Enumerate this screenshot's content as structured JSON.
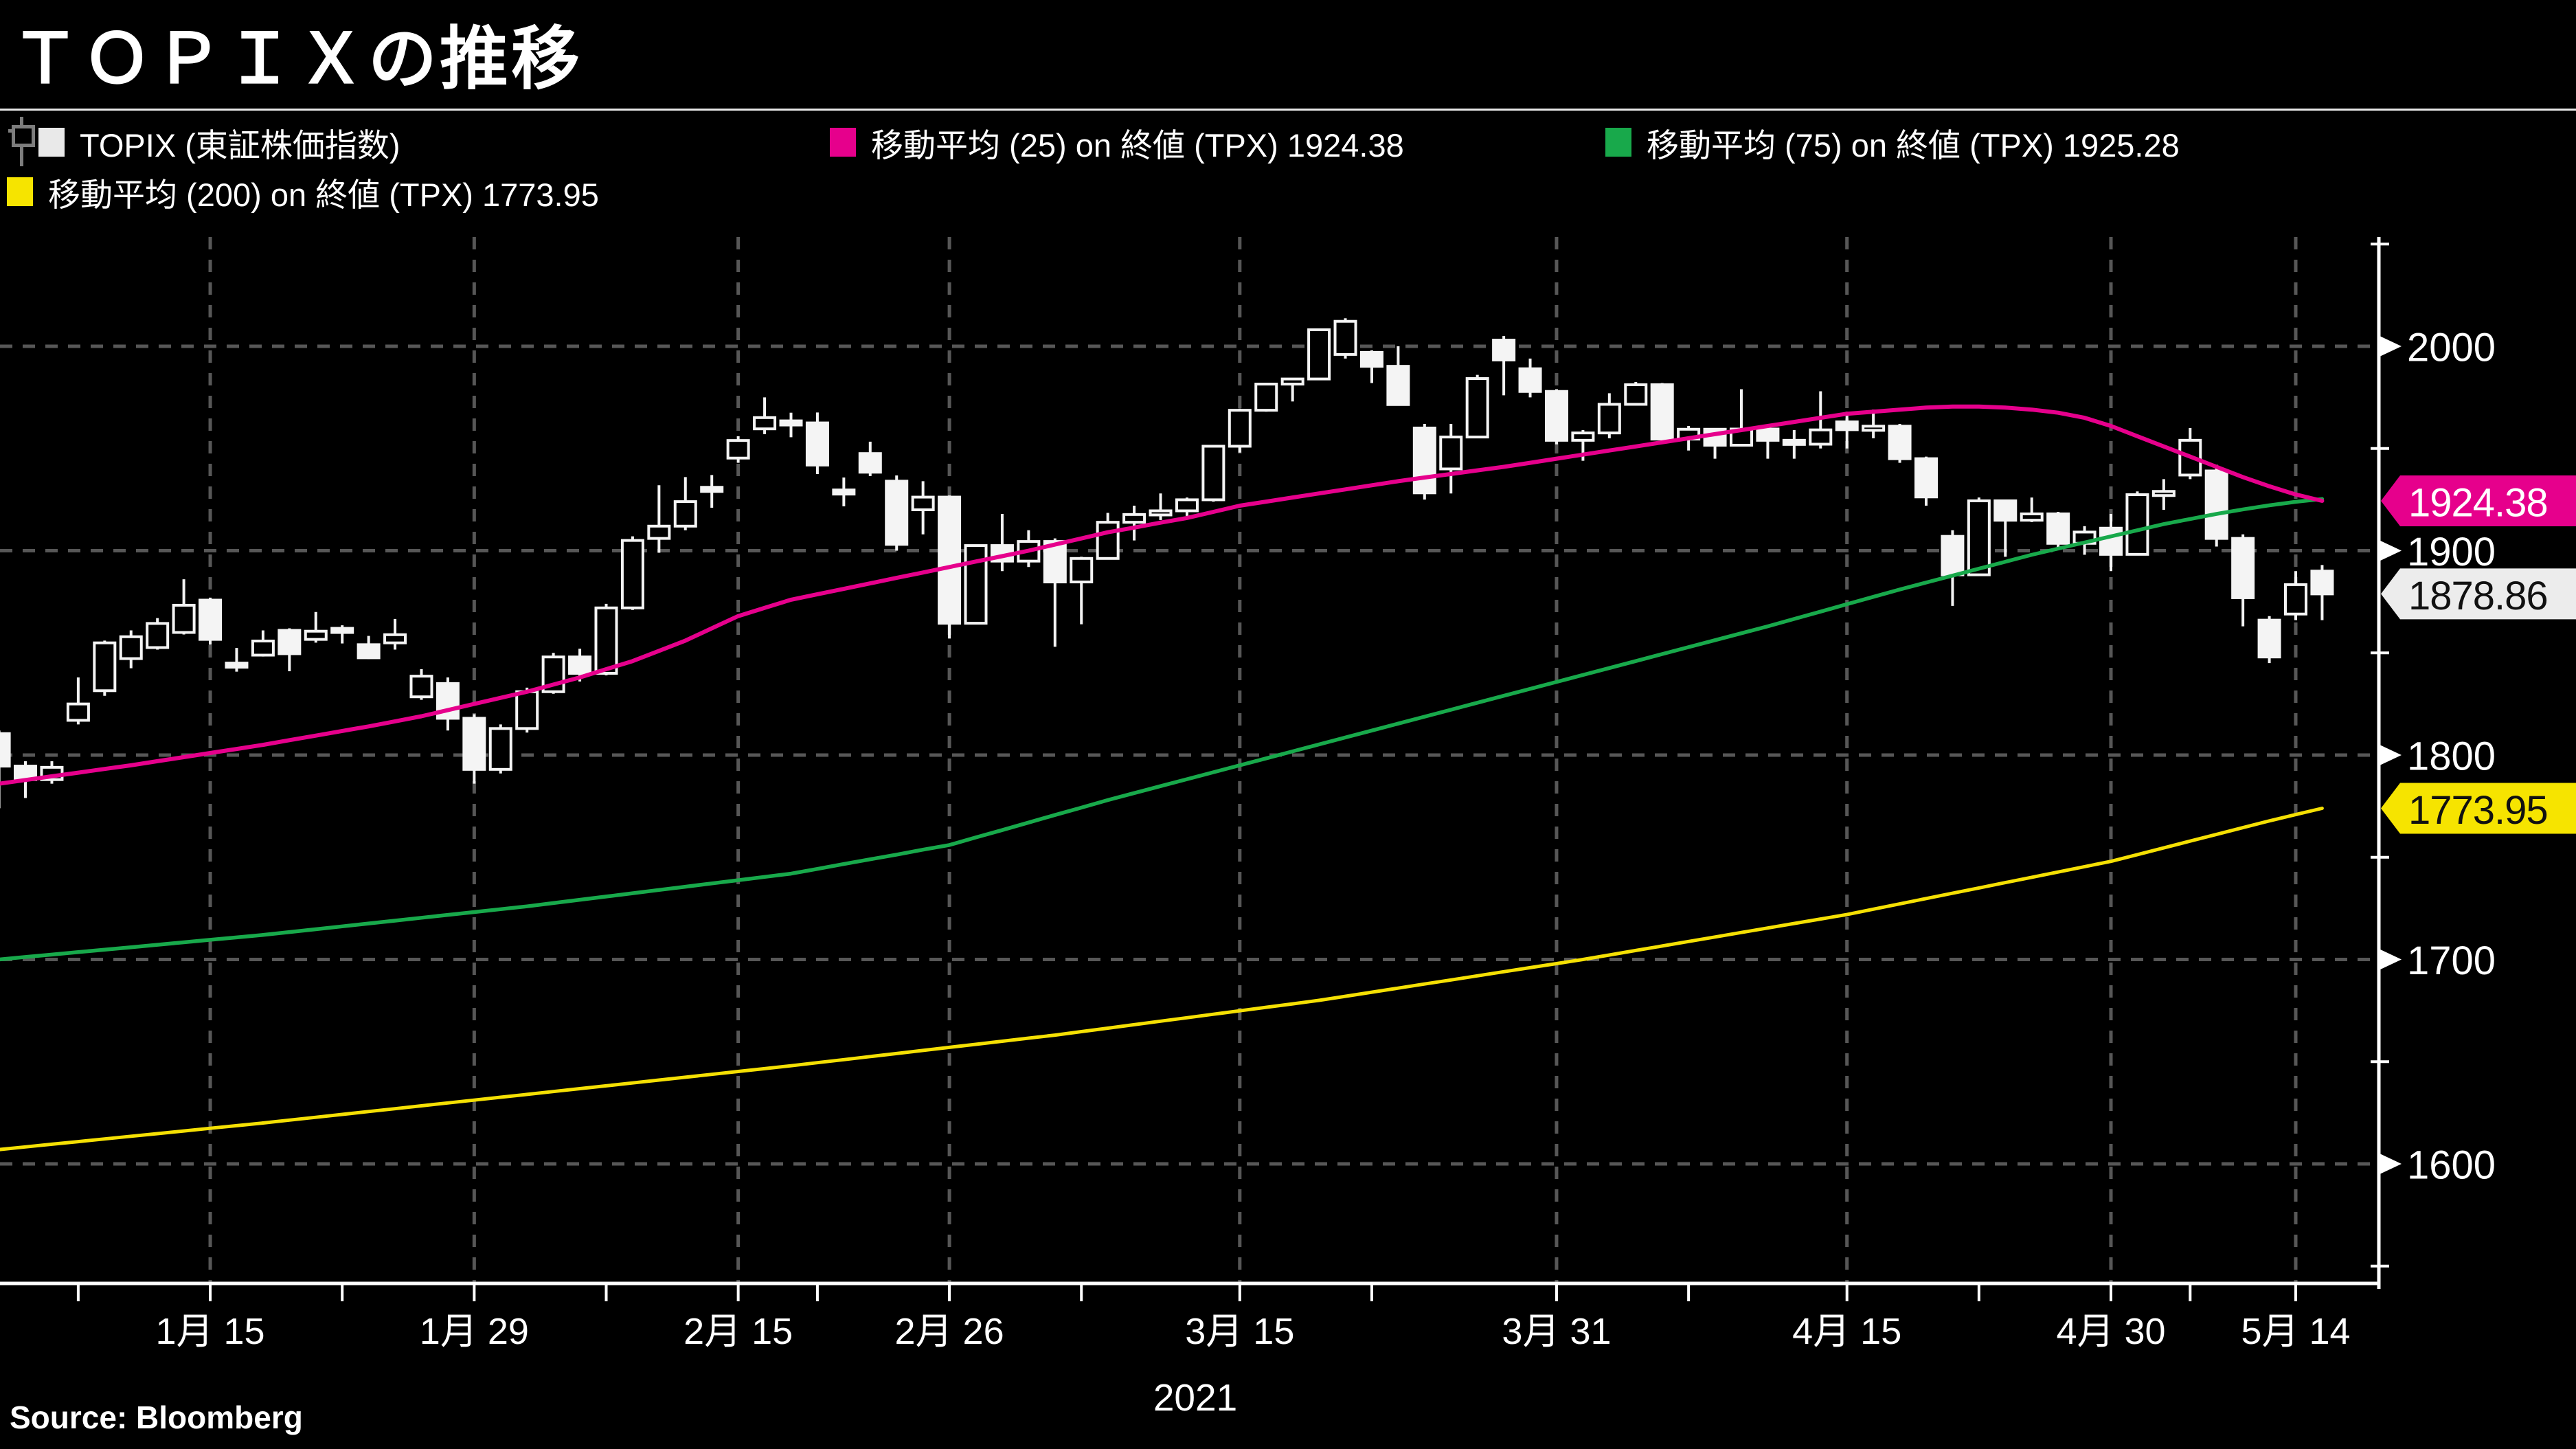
{
  "title": "ＴＯＰＩＸの推移",
  "source": "Source:  Bloomberg",
  "legend": {
    "items": [
      {
        "id": "topix",
        "label": "TOPIX (東証株価指数)",
        "swatch": "#e9e9e9"
      },
      {
        "id": "ma25",
        "label": "移動平均 (25)  on 終値 (TPX) 1924.38",
        "swatch": "#e6008c"
      },
      {
        "id": "ma75",
        "label": "移動平均 (75)  on 終値 (TPX) 1925.28",
        "swatch": "#18a94b"
      },
      {
        "id": "ma200",
        "label": "移動平均 (200)  on 終値 (TPX) 1773.95",
        "swatch": "#f6e400"
      }
    ]
  },
  "chart_data": {
    "type": "candlestick",
    "title": "ＴＯＰＩＸの推移",
    "ylim": [
      1540,
      2060
    ],
    "grid": true,
    "legend_position": "top",
    "x_axis": {
      "year": "2021",
      "labels": [
        {
          "text": "1月 15",
          "i": 8
        },
        {
          "text": "1月 29",
          "i": 18
        },
        {
          "text": "2月 15",
          "i": 28
        },
        {
          "text": "2月 26",
          "i": 36
        },
        {
          "text": "3月 15",
          "i": 47
        },
        {
          "text": "3月 31",
          "i": 59
        },
        {
          "text": "4月 15",
          "i": 70
        },
        {
          "text": "4月 30",
          "i": 80
        },
        {
          "text": "5月 14",
          "i": 87
        }
      ],
      "minor_tick_indices": [
        3,
        13,
        23,
        31,
        41,
        52,
        64,
        75,
        83
      ]
    },
    "y_axis": {
      "ticks": [
        2000,
        1900,
        1800,
        1700,
        1600
      ],
      "minor_ticks": [
        2050,
        1950,
        1850,
        1750,
        1650,
        1550
      ]
    },
    "price_flags": [
      {
        "text": "1924.38",
        "value": 1924.38,
        "bg": "#e6008c",
        "fg": "#ffffff"
      },
      {
        "text": "1878.86",
        "value": 1878.86,
        "bg": "#ececec",
        "fg": "#111111"
      },
      {
        "text": "1773.95",
        "value": 1773.95,
        "bg": "#f6e400",
        "fg": "#111111"
      }
    ],
    "colors": {
      "background": "#000000",
      "candle": "#f4f4f4",
      "ma25": "#e6008c",
      "ma75": "#18a94b",
      "ma200": "#f5e003",
      "grid": "#575757",
      "axis": "#ffffff"
    },
    "layout": {
      "y2000": 504,
      "ppp": 2.975,
      "x0": -1.4,
      "xstep": 38.43,
      "candle_w": 30,
      "axis_x": 3463,
      "axis_bottom": 1868,
      "plot_top": 345,
      "label_y": 1956,
      "tick_len": 26
    },
    "ohlc": [
      [
        "1/4",
        1810.5,
        1812,
        1774,
        1794.6
      ],
      [
        "1/5",
        1794.6,
        1797,
        1779,
        1788
      ],
      [
        "1/6",
        1788,
        1797,
        1786,
        1794
      ],
      [
        "1/7",
        1817,
        1838,
        1815,
        1825
      ],
      [
        "1/8",
        1831.5,
        1856,
        1829,
        1854.9
      ],
      [
        "1/12",
        1847.2,
        1861,
        1842.5,
        1857.9
      ],
      [
        "1/13",
        1852.6,
        1867,
        1851.6,
        1864.4
      ],
      [
        "1/14",
        1860,
        1886,
        1859,
        1873.3
      ],
      [
        "1/15",
        1875.8,
        1877,
        1854,
        1856.6
      ],
      [
        "1/18",
        1845,
        1852.4,
        1840.8,
        1843
      ],
      [
        "1/19",
        1848.9,
        1861,
        1848.2,
        1855.8
      ],
      [
        "1/20",
        1861,
        1862,
        1841,
        1849.6
      ],
      [
        "1/21",
        1856.6,
        1870,
        1855,
        1860.6
      ],
      [
        "1/22",
        1862,
        1863.5,
        1854.6,
        1861.5
      ],
      [
        "1/25",
        1854,
        1858.3,
        1847,
        1847.6
      ],
      [
        "1/26",
        1854.9,
        1866.6,
        1851.6,
        1858.9
      ],
      [
        "1/27",
        1828.5,
        1842,
        1827,
        1838.6
      ],
      [
        "1/28",
        1835,
        1838,
        1812,
        1818
      ],
      [
        "1/29",
        1818,
        1820,
        1786,
        1793
      ],
      [
        "2/1",
        1793,
        1815,
        1791,
        1813
      ],
      [
        "2/2",
        1813,
        1833,
        1811,
        1831
      ],
      [
        "2/3",
        1831,
        1850,
        1830,
        1848
      ],
      [
        "2/4",
        1848,
        1852,
        1836,
        1840
      ],
      [
        "2/5",
        1840,
        1874,
        1839,
        1872
      ],
      [
        "2/8",
        1872,
        1907,
        1871,
        1905
      ],
      [
        "2/9",
        1906,
        1932,
        1899,
        1912
      ],
      [
        "2/10",
        1912,
        1936,
        1910,
        1924
      ],
      [
        "2/12",
        1931,
        1937,
        1921,
        1929
      ],
      [
        "2/15",
        1945.3,
        1956,
        1943,
        1953.9
      ],
      [
        "2/16",
        1959.6,
        1975,
        1957,
        1965.1
      ],
      [
        "2/17",
        1963.5,
        1967.5,
        1955.5,
        1961.5
      ],
      [
        "2/18",
        1962.5,
        1967.6,
        1937.5,
        1941.9
      ],
      [
        "2/19",
        1929.7,
        1935.8,
        1921.7,
        1928.2
      ],
      [
        "2/22",
        1947.5,
        1953.3,
        1936.5,
        1938.4
      ],
      [
        "2/24",
        1934,
        1936.8,
        1900,
        1903.1
      ],
      [
        "2/25",
        1920,
        1934,
        1908,
        1926.2
      ],
      [
        "2/26",
        1926.2,
        1927,
        1857,
        1864.5
      ],
      [
        "3/1",
        1864.5,
        1903,
        1864,
        1902.5
      ],
      [
        "3/2",
        1902.5,
        1918,
        1890,
        1894.9
      ],
      [
        "3/3",
        1894.9,
        1910,
        1892,
        1904.5
      ],
      [
        "3/4",
        1904.5,
        1906,
        1853,
        1884.7
      ],
      [
        "3/5",
        1884.7,
        1897,
        1864,
        1896.2
      ],
      [
        "3/8",
        1896.2,
        1918.5,
        1896,
        1913.9
      ],
      [
        "3/9",
        1913.9,
        1922,
        1905,
        1917.7
      ],
      [
        "3/10",
        1917.7,
        1928,
        1915,
        1919.5
      ],
      [
        "3/11",
        1919.5,
        1926,
        1917,
        1924.9
      ],
      [
        "3/12",
        1924.9,
        1951.5,
        1924,
        1951.1
      ],
      [
        "3/15",
        1951.1,
        1969.5,
        1948,
        1968.7
      ],
      [
        "3/16",
        1968.7,
        1982,
        1968,
        1981.5
      ],
      [
        "3/17",
        1981.5,
        1984.5,
        1973,
        1984
      ],
      [
        "3/18",
        1984,
        2008.5,
        1984,
        2008.1
      ],
      [
        "3/19",
        1996,
        2013.7,
        1994,
        2012.2
      ],
      [
        "3/22",
        1997,
        1998,
        1982,
        1990.2
      ],
      [
        "3/23",
        1990.2,
        2000,
        1971,
        1971.5
      ],
      [
        "3/24",
        1960,
        1962,
        1925,
        1928.3
      ],
      [
        "3/25",
        1940,
        1962,
        1928,
        1955.6
      ],
      [
        "3/26",
        1955.6,
        1986,
        1955,
        1984.2
      ],
      [
        "3/29",
        2003,
        2005,
        1976,
        1993.3
      ],
      [
        "3/30",
        1989,
        1994,
        1975,
        1977.9
      ],
      [
        "3/31",
        1977.9,
        1979,
        1952,
        1954
      ],
      [
        "4/1",
        1954,
        1959,
        1944,
        1957.6
      ],
      [
        "4/2",
        1957.6,
        1977,
        1955,
        1971.6
      ],
      [
        "4/5",
        1971.6,
        1982.5,
        1971,
        1981.2
      ],
      [
        "4/6",
        1981.2,
        1982,
        1953,
        1954.6
      ],
      [
        "4/7",
        1954.6,
        1961,
        1949,
        1959.4
      ],
      [
        "4/8",
        1959.4,
        1960,
        1945,
        1951.6
      ],
      [
        "4/9",
        1951.6,
        1979,
        1951,
        1959.5
      ],
      [
        "4/12",
        1959.5,
        1960,
        1945,
        1954
      ],
      [
        "4/13",
        1954,
        1959,
        1945,
        1952.1
      ],
      [
        "4/14",
        1952.1,
        1978,
        1950,
        1959.1
      ],
      [
        "4/15",
        1963,
        1968,
        1950,
        1959.2
      ],
      [
        "4/16",
        1959.2,
        1969,
        1955,
        1960.9
      ],
      [
        "4/19",
        1960.9,
        1962,
        1943,
        1945
      ],
      [
        "4/20",
        1945,
        1946,
        1922,
        1926.3
      ],
      [
        "4/21",
        1907,
        1910,
        1873,
        1888.2
      ],
      [
        "4/22",
        1888.2,
        1926,
        1888,
        1924.4
      ],
      [
        "4/23",
        1924.4,
        1925,
        1897,
        1914.9
      ],
      [
        "4/26",
        1914.9,
        1926,
        1914,
        1918
      ],
      [
        "4/27",
        1918,
        1919,
        1901,
        1903.6
      ],
      [
        "4/28",
        1903.6,
        1912,
        1898,
        1909.1
      ],
      [
        "4/30",
        1911,
        1918,
        1890,
        1898.2
      ],
      [
        "5/6",
        1898.2,
        1929,
        1898,
        1927.4
      ],
      [
        "5/7",
        1927.4,
        1935,
        1920,
        1929
      ],
      [
        "5/10",
        1937,
        1960,
        1935,
        1954
      ],
      [
        "5/11",
        1939,
        1942,
        1902,
        1906
      ],
      [
        "5/12",
        1906,
        1908,
        1863,
        1877
      ],
      [
        "5/13",
        1866,
        1868,
        1845,
        1848
      ],
      [
        "5/14",
        1869,
        1890,
        1866,
        1883.4
      ],
      [
        "5/17",
        1890,
        1893,
        1866,
        1878.86
      ]
    ],
    "ma25": [
      1786,
      1787.8,
      1789.6,
      1791.4,
      1793.2,
      1795,
      1797,
      1799,
      1801,
      1803,
      1805,
      1807.3,
      1809.5,
      1811.8,
      1814,
      1816.5,
      1819,
      1822,
      1825,
      1828,
      1831,
      1834.5,
      1838,
      1842,
      1846,
      1851,
      1856,
      1862,
      1868,
      1872,
      1876,
      1878.7,
      1881.3,
      1884,
      1886.7,
      1889.3,
      1892,
      1894.7,
      1897.3,
      1900,
      1903,
      1906,
      1909,
      1911.3,
      1913.7,
      1916,
      1919,
      1922,
      1924,
      1926,
      1928,
      1930,
      1932,
      1934,
      1935.8,
      1937.5,
      1939.3,
      1941,
      1943,
      1945,
      1947,
      1949,
      1951,
      1953,
      1955,
      1957,
      1959,
      1961,
      1963,
      1965,
      1967,
      1968,
      1969,
      1970,
      1970.5,
      1970.5,
      1970,
      1969,
      1967.5,
      1965,
      1961,
      1956,
      1951,
      1946,
      1941,
      1936,
      1931.5,
      1927.5,
      1924.38
    ],
    "ma75": [
      1700,
      1701.2,
      1702.4,
      1703.6,
      1704.8,
      1706,
      1707.2,
      1708.4,
      1709.6,
      1710.8,
      1712,
      1713.4,
      1714.8,
      1716.2,
      1717.6,
      1719,
      1720.4,
      1721.8,
      1723.2,
      1724.6,
      1726,
      1727.6,
      1729.2,
      1730.8,
      1732.4,
      1734,
      1735.6,
      1737.2,
      1738.8,
      1740.4,
      1742,
      1744.3,
      1746.7,
      1749,
      1751.3,
      1753.7,
      1756,
      1759.7,
      1763.3,
      1767,
      1770.7,
      1774.3,
      1778,
      1781.4,
      1784.8,
      1788.2,
      1791.6,
      1795,
      1798.4,
      1801.8,
      1805.2,
      1808.6,
      1812,
      1815.4,
      1818.8,
      1822.2,
      1825.6,
      1829,
      1832.4,
      1835.8,
      1839.2,
      1842.6,
      1846,
      1849.4,
      1852.8,
      1856.2,
      1859.6,
      1863,
      1866.6,
      1870.2,
      1873.8,
      1877.4,
      1881,
      1884.4,
      1887.8,
      1891.2,
      1894.6,
      1898,
      1901,
      1904,
      1907,
      1910,
      1913,
      1915.5,
      1918,
      1920.2,
      1922.2,
      1923.9,
      1925.28
    ],
    "ma200": [
      1607,
      1608.3,
      1609.6,
      1610.9,
      1612.2,
      1613.5,
      1614.8,
      1616.1,
      1617.4,
      1618.7,
      1620,
      1621.4,
      1622.8,
      1624.2,
      1625.6,
      1627,
      1628.4,
      1629.8,
      1631.2,
      1632.6,
      1634,
      1635.4,
      1636.8,
      1638.2,
      1639.6,
      1641,
      1642.4,
      1643.8,
      1645.2,
      1646.6,
      1648,
      1649.5,
      1651,
      1652.5,
      1654,
      1655.5,
      1657,
      1658.5,
      1660,
      1661.5,
      1663,
      1664.7,
      1666.4,
      1668.1,
      1669.8,
      1671.5,
      1673.2,
      1674.9,
      1676.6,
      1678.3,
      1680,
      1682,
      1684,
      1686,
      1688,
      1690,
      1692,
      1694,
      1696,
      1698,
      1700,
      1702.2,
      1704.4,
      1706.6,
      1708.8,
      1711,
      1713.2,
      1715.4,
      1717.6,
      1719.8,
      1722,
      1724.6,
      1727.2,
      1729.8,
      1732.4,
      1735,
      1737.6,
      1740.2,
      1742.8,
      1745.4,
      1748,
      1751.3,
      1754.6,
      1757.9,
      1761.2,
      1764.5,
      1767.8,
      1770.9,
      1773.95
    ]
  }
}
